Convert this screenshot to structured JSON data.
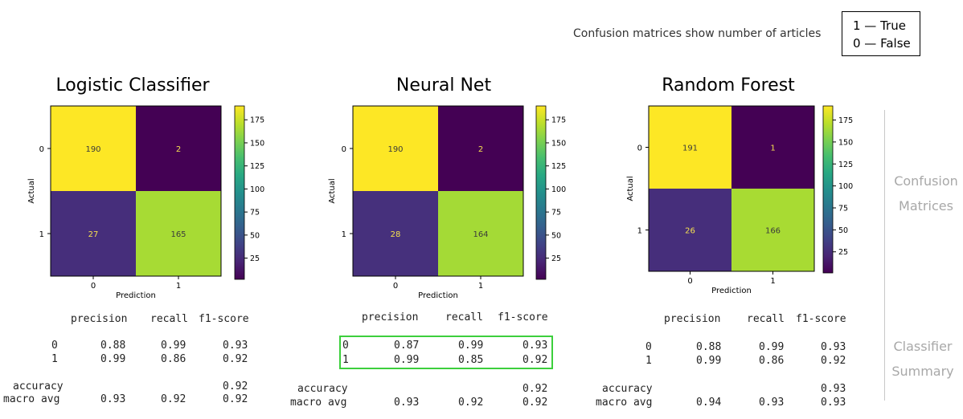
{
  "note": "Confusion matrices show number of articles",
  "legend": [
    "1 — True",
    "0 — False"
  ],
  "side_labels": {
    "confusion": [
      "Confusion",
      "Matrices"
    ],
    "summary": [
      "Classifier",
      "Summary"
    ]
  },
  "report_headers": [
    "precision",
    "recall",
    "f1-score"
  ],
  "chart_data": [
    {
      "type": "heatmap",
      "title": "Logistic Classifier",
      "xlabel": "Prediction",
      "ylabel": "Actual",
      "x_categories": [
        "0",
        "1"
      ],
      "y_categories": [
        "0",
        "1"
      ],
      "values": [
        [
          190,
          2
        ],
        [
          27,
          165
        ]
      ],
      "colorbar_ticks": [
        175,
        150,
        125,
        100,
        75,
        50,
        25
      ],
      "colorbar_range": [
        2,
        190
      ],
      "report": {
        "rows": [
          {
            "label": "0",
            "precision": "0.88",
            "recall": "0.99",
            "f1": "0.93"
          },
          {
            "label": "1",
            "precision": "0.99",
            "recall": "0.86",
            "f1": "0.92"
          }
        ],
        "accuracy": {
          "label": "accuracy",
          "f1": "0.92"
        },
        "macro": {
          "label": "macro avg",
          "precision": "0.93",
          "recall": "0.92",
          "f1": "0.92"
        }
      }
    },
    {
      "type": "heatmap",
      "title": "Neural Net",
      "xlabel": "Prediction",
      "ylabel": "Actual",
      "x_categories": [
        "0",
        "1"
      ],
      "y_categories": [
        "0",
        "1"
      ],
      "values": [
        [
          190,
          2
        ],
        [
          28,
          164
        ]
      ],
      "colorbar_ticks": [
        175,
        150,
        125,
        100,
        75,
        50,
        25
      ],
      "colorbar_range": [
        2,
        190
      ],
      "report": {
        "rows": [
          {
            "label": "0",
            "precision": "0.87",
            "recall": "0.99",
            "f1": "0.93"
          },
          {
            "label": "1",
            "precision": "0.99",
            "recall": "0.85",
            "f1": "0.92"
          }
        ],
        "accuracy": {
          "label": "accuracy",
          "f1": "0.92"
        },
        "macro": {
          "label": "macro avg",
          "precision": "0.93",
          "recall": "0.92",
          "f1": "0.92"
        }
      }
    },
    {
      "type": "heatmap",
      "title": "Random Forest",
      "xlabel": "Prediction",
      "ylabel": "Actual",
      "x_categories": [
        "0",
        "1"
      ],
      "y_categories": [
        "0",
        "1"
      ],
      "values": [
        [
          191,
          1
        ],
        [
          26,
          166
        ]
      ],
      "colorbar_ticks": [
        175,
        150,
        125,
        100,
        75,
        50,
        25
      ],
      "colorbar_range": [
        1,
        191
      ],
      "report": {
        "rows": [
          {
            "label": "0",
            "precision": "0.88",
            "recall": "0.99",
            "f1": "0.93"
          },
          {
            "label": "1",
            "precision": "0.99",
            "recall": "0.86",
            "f1": "0.92"
          }
        ],
        "accuracy": {
          "label": "accuracy",
          "f1": "0.93"
        },
        "macro": {
          "label": "macro avg",
          "precision": "0.94",
          "recall": "0.93",
          "f1": "0.93"
        }
      }
    }
  ]
}
